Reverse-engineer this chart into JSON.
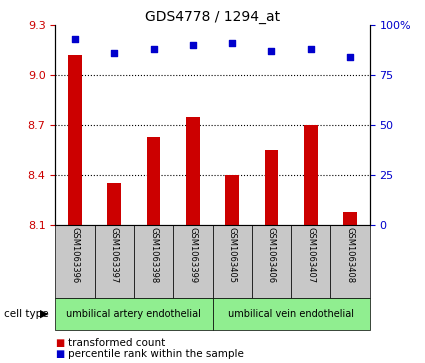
{
  "title": "GDS4778 / 1294_at",
  "samples": [
    "GSM1063396",
    "GSM1063397",
    "GSM1063398",
    "GSM1063399",
    "GSM1063405",
    "GSM1063406",
    "GSM1063407",
    "GSM1063408"
  ],
  "transformed_count": [
    9.12,
    8.35,
    8.63,
    8.75,
    8.4,
    8.55,
    8.7,
    8.18
  ],
  "percentile_rank": [
    93,
    86,
    88,
    90,
    91,
    87,
    88,
    84
  ],
  "ylim_left": [
    8.1,
    9.3
  ],
  "ylim_right": [
    0,
    100
  ],
  "yticks_left": [
    8.1,
    8.4,
    8.7,
    9.0,
    9.3
  ],
  "yticks_right": [
    0,
    25,
    50,
    75,
    100
  ],
  "bar_color": "#cc0000",
  "dot_color": "#0000cc",
  "group1_label": "umbilical artery endothelial",
  "group2_label": "umbilical vein endothelial",
  "group_color": "#90ee90",
  "cell_type_label": "cell type",
  "legend_bar_label": "transformed count",
  "legend_dot_label": "percentile rank within the sample",
  "tick_color_left": "#cc0000",
  "tick_color_right": "#0000cc",
  "bg_plot": "#ffffff",
  "bg_sample": "#c8c8c8",
  "title_fontsize": 10,
  "tick_fontsize": 8,
  "sample_fontsize": 6,
  "celltype_fontsize": 7,
  "legend_fontsize": 7.5
}
